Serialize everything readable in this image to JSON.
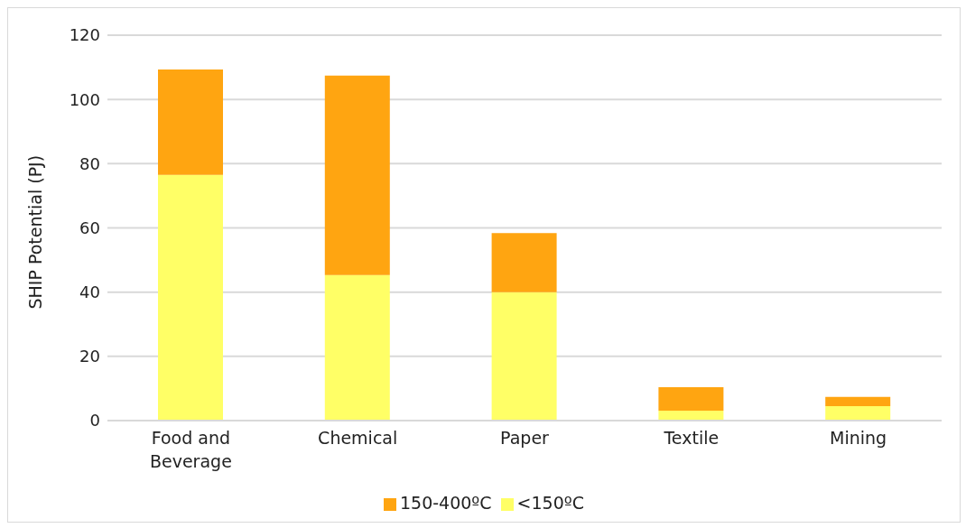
{
  "chart_data": {
    "type": "bar",
    "stacked": true,
    "ylabel": "SHIP Potential (PJ)",
    "categories": [
      "Food and Beverage",
      "Chemical",
      "Paper",
      "Textile",
      "Mining"
    ],
    "series": [
      {
        "name": "<150ºC",
        "color": "#ffff66",
        "values": [
          76.5,
          45.3,
          40.0,
          3.1,
          4.5
        ]
      },
      {
        "name": "150-400ºC",
        "color": "#ffa511",
        "values": [
          32.8,
          62.1,
          18.4,
          7.3,
          2.9
        ]
      }
    ],
    "ylim": [
      0,
      120
    ],
    "yticks": [
      0,
      20,
      40,
      60,
      80,
      100,
      120
    ],
    "grid": "y",
    "legend": "bottom"
  }
}
